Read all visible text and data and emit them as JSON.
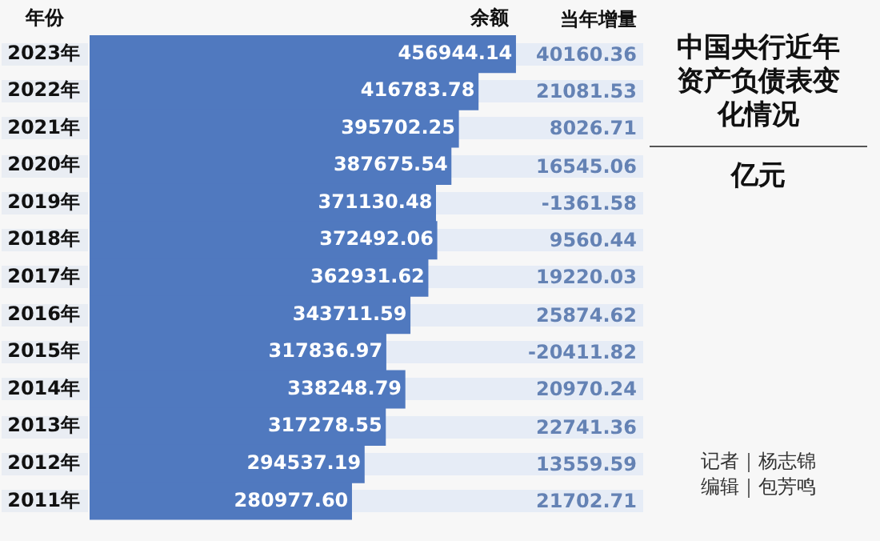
{
  "chart_data": {
    "type": "bar",
    "orientation": "horizontal",
    "title": "中国央行近年资产负债表变化情况",
    "subtitle": "亿元",
    "ylabel": "年份",
    "tick_labels": "y",
    "data_labels": true,
    "categories": [
      "2023年",
      "2022年",
      "2021年",
      "2020年",
      "2019年",
      "2018年",
      "2017年",
      "2016年",
      "2015年",
      "2014年",
      "2013年",
      "2012年",
      "2011年"
    ],
    "series": [
      {
        "name": "余额",
        "color": "#5079bf",
        "values": [
          456944.14,
          416783.78,
          395702.25,
          387675.54,
          371130.48,
          372492.06,
          362931.62,
          343711.59,
          317836.97,
          338248.79,
          317278.55,
          294537.19,
          280977.6
        ],
        "value_labels": [
          "456944.14",
          "416783.78",
          "395702.25",
          "387675.54",
          "371130.48",
          "372492.06",
          "362931.62",
          "343711.59",
          "317836.97",
          "338248.79",
          "317278.55",
          "294537.19",
          "280977.60"
        ]
      }
    ],
    "annotations": [
      "当年增量",
      "40160.36",
      "21081.53",
      "8026.71",
      "16545.06",
      "-1361.58",
      "9560.44",
      "19220.03",
      "25874.62",
      "-20411.82",
      "20970.24",
      "22741.36",
      "13559.59",
      "21702.71",
      "记者｜杨志锦",
      "编辑｜包芳鸣"
    ]
  }
}
